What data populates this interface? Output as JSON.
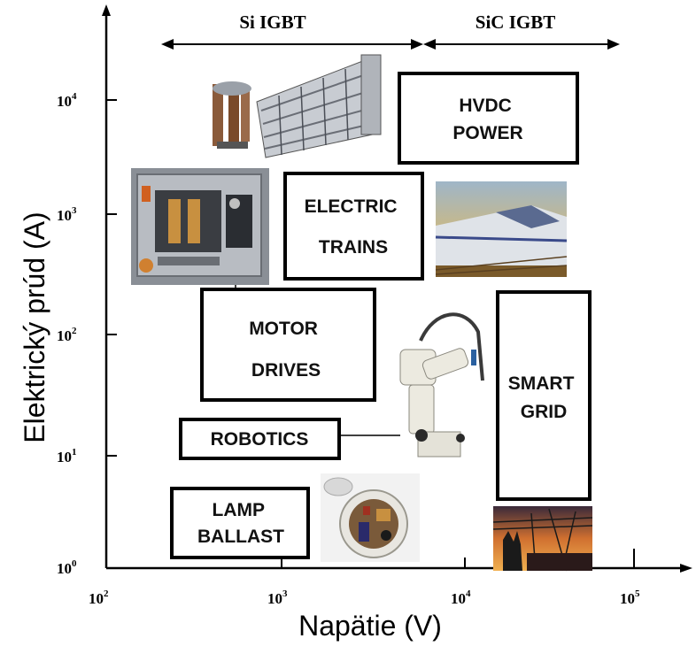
{
  "axes": {
    "x_label": "Napätie (V)",
    "y_label": "Elektrický prúd (A)",
    "x_ticks": [
      {
        "base": "10",
        "exp": "2"
      },
      {
        "base": "10",
        "exp": "3"
      },
      {
        "base": "10",
        "exp": "4"
      },
      {
        "base": "10",
        "exp": "5"
      }
    ],
    "y_ticks": [
      {
        "base": "10",
        "exp": "0"
      },
      {
        "base": "10",
        "exp": "1"
      },
      {
        "base": "10",
        "exp": "2"
      },
      {
        "base": "10",
        "exp": "3"
      },
      {
        "base": "10",
        "exp": "4"
      }
    ]
  },
  "ranges": {
    "si_igbt": "Si IGBT",
    "sic_igbt": "SiC IGBT"
  },
  "applications": {
    "hvdc": [
      "HVDC",
      "POWER"
    ],
    "electric_trains": [
      "ELECTRIC",
      "TRAINS"
    ],
    "motor_drives": [
      "MOTOR",
      "DRIVES"
    ],
    "smart_grid": [
      "SMART",
      "GRID"
    ],
    "robotics": [
      "ROBOTICS"
    ],
    "lamp_ballast": [
      "LAMP",
      "BALLAST"
    ]
  },
  "pictures": {
    "hvdc_valve": "hvdc-valve-hall-photo",
    "inverter": "motor-inverter-photo",
    "train": "high-speed-train-photo",
    "robot": "industrial-robot-photo",
    "ballast": "lamp-ballast-photo",
    "grid": "power-grid-sunset-photo"
  }
}
